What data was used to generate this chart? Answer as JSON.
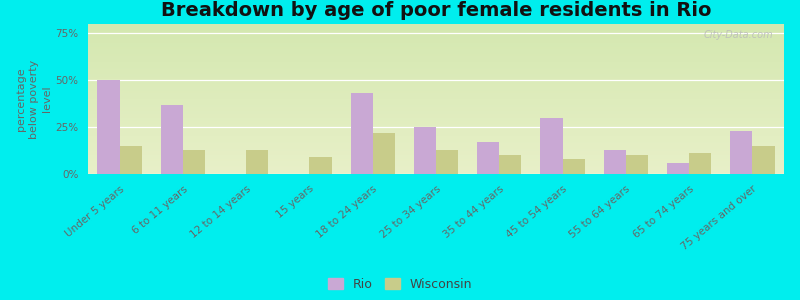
{
  "title": "Breakdown by age of poor female residents in Rio",
  "ylabel": "percentage\nbelow poverty\nlevel",
  "categories": [
    "Under 5 years",
    "6 to 11 years",
    "12 to 14 years",
    "15 years",
    "18 to 24 years",
    "25 to 34 years",
    "35 to 44 years",
    "45 to 54 years",
    "55 to 64 years",
    "65 to 74 years",
    "75 years and over"
  ],
  "rio_values": [
    50,
    37,
    0,
    0,
    43,
    25,
    17,
    30,
    13,
    6,
    23
  ],
  "wisconsin_values": [
    15,
    13,
    13,
    9,
    22,
    13,
    10,
    8,
    10,
    11,
    15
  ],
  "rio_color": "#c9a8d4",
  "wisconsin_color": "#c8cc8a",
  "bar_width": 0.35,
  "ylim": [
    0,
    80
  ],
  "yticks": [
    0,
    25,
    50,
    75
  ],
  "ytick_labels": [
    "0%",
    "25%",
    "50%",
    "75%"
  ],
  "bg_top": "#d4e8b0",
  "bg_bottom": "#e8f0c8",
  "outer_background": "#00eeee",
  "title_fontsize": 14,
  "axis_label_fontsize": 8,
  "tick_label_fontsize": 7.5,
  "legend_fontsize": 9,
  "watermark": "City-Data.com"
}
